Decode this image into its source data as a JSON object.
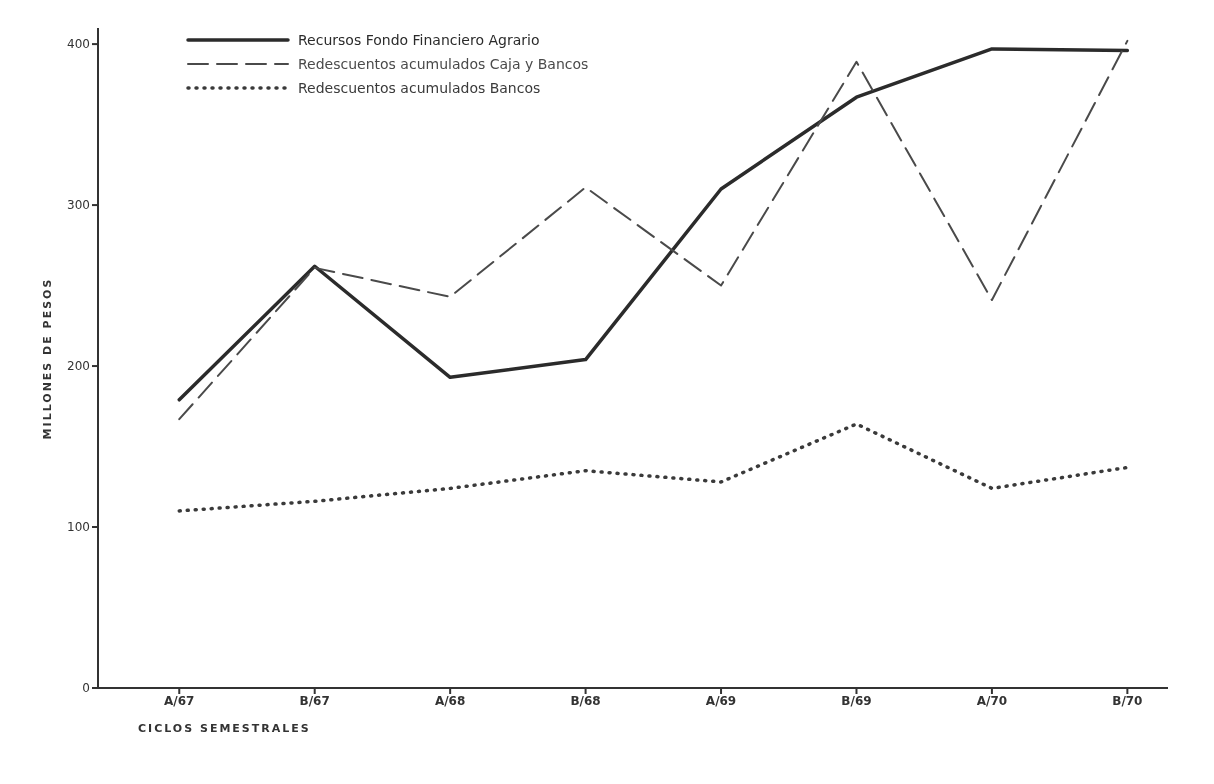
{
  "chart_data": {
    "type": "line",
    "xlabel": "CICLOS SEMESTRALES",
    "ylabel": "MILLONES DE PESOS",
    "categories": [
      "A/67",
      "B/67",
      "A/68",
      "B/68",
      "A/69",
      "B/69",
      "A/70",
      "B/70"
    ],
    "series": [
      {
        "name": "Recursos  Fondo Financiero Agrario",
        "color": "#2b2b2b",
        "line_style": "solid",
        "values": [
          179,
          262,
          193,
          204,
          310,
          367,
          397,
          396
        ]
      },
      {
        "name": "Redescuentos acumulados  Caja y Bancos",
        "color": "#4a4a4a",
        "line_style": "dashed",
        "values": [
          167,
          261,
          243,
          311,
          250,
          389,
          241,
          402
        ]
      },
      {
        "name": "Redescuentos acumulados  Bancos",
        "color": "#3a3a3a",
        "line_style": "dotted",
        "values": [
          110,
          116,
          124,
          135,
          128,
          164,
          124,
          137
        ]
      }
    ],
    "ylim": [
      0,
      410
    ],
    "yticks": [
      0,
      100,
      200,
      300,
      400
    ],
    "grid": false,
    "legend": "top left",
    "marker": "none"
  }
}
